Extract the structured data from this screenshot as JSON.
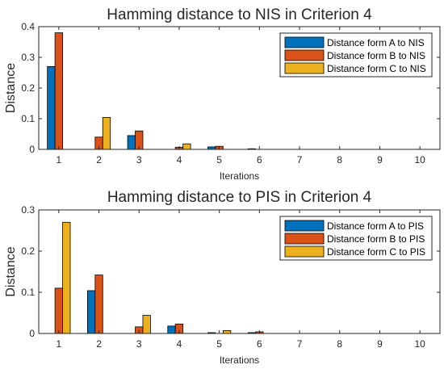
{
  "chart_data": [
    {
      "type": "bar",
      "title": "Hamming distance to NIS in Criterion 4",
      "xlabel": "Iterations",
      "ylabel": "Distance",
      "categories": [
        "1",
        "2",
        "3",
        "4",
        "5",
        "6",
        "7",
        "8",
        "9",
        "10"
      ],
      "ylim": [
        0,
        0.4
      ],
      "yticks": [
        "0",
        "0.1",
        "0.2",
        "0.3",
        "0.4"
      ],
      "ytick_values": [
        0,
        0.1,
        0.2,
        0.3,
        0.4
      ],
      "grid": false,
      "legend_position": "top-right",
      "series": [
        {
          "name": "Distance form A to NIS",
          "color": "#0072BD",
          "values": [
            0.27,
            0,
            0.045,
            0,
            0.008,
            0.002,
            0,
            0,
            0,
            0
          ]
        },
        {
          "name": "Distance form B to NIS",
          "color": "#D95319",
          "values": [
            0.38,
            0.04,
            0.06,
            0.007,
            0.01,
            0,
            0,
            0,
            0,
            0
          ]
        },
        {
          "name": "Distance form C to NIS",
          "color": "#EDB120",
          "values": [
            0,
            0.104,
            0,
            0.018,
            0,
            0,
            0,
            0,
            0,
            0
          ]
        }
      ]
    },
    {
      "type": "bar",
      "title": "Hamming distance to PIS in Criterion 4",
      "xlabel": "Iterations",
      "ylabel": "Distance",
      "categories": [
        "1",
        "2",
        "3",
        "4",
        "5",
        "6",
        "7",
        "8",
        "9",
        "10"
      ],
      "ylim": [
        0,
        0.3
      ],
      "yticks": [
        "0",
        "0.1",
        "0.2",
        "0.3"
      ],
      "ytick_values": [
        0,
        0.1,
        0.2,
        0.3
      ],
      "grid": false,
      "legend_position": "top-right",
      "series": [
        {
          "name": "Distance form A to PIS",
          "color": "#0072BD",
          "values": [
            0,
            0.104,
            0,
            0.018,
            0.002,
            0.002,
            0,
            0,
            0,
            0
          ]
        },
        {
          "name": "Distance form B to PIS",
          "color": "#D95319",
          "values": [
            0.11,
            0.142,
            0.016,
            0.023,
            0,
            0.004,
            0,
            0,
            0,
            0
          ]
        },
        {
          "name": "Distance form C to PIS",
          "color": "#EDB120",
          "values": [
            0.27,
            0,
            0.044,
            0,
            0.007,
            0,
            0,
            0,
            0,
            0
          ]
        }
      ]
    }
  ]
}
